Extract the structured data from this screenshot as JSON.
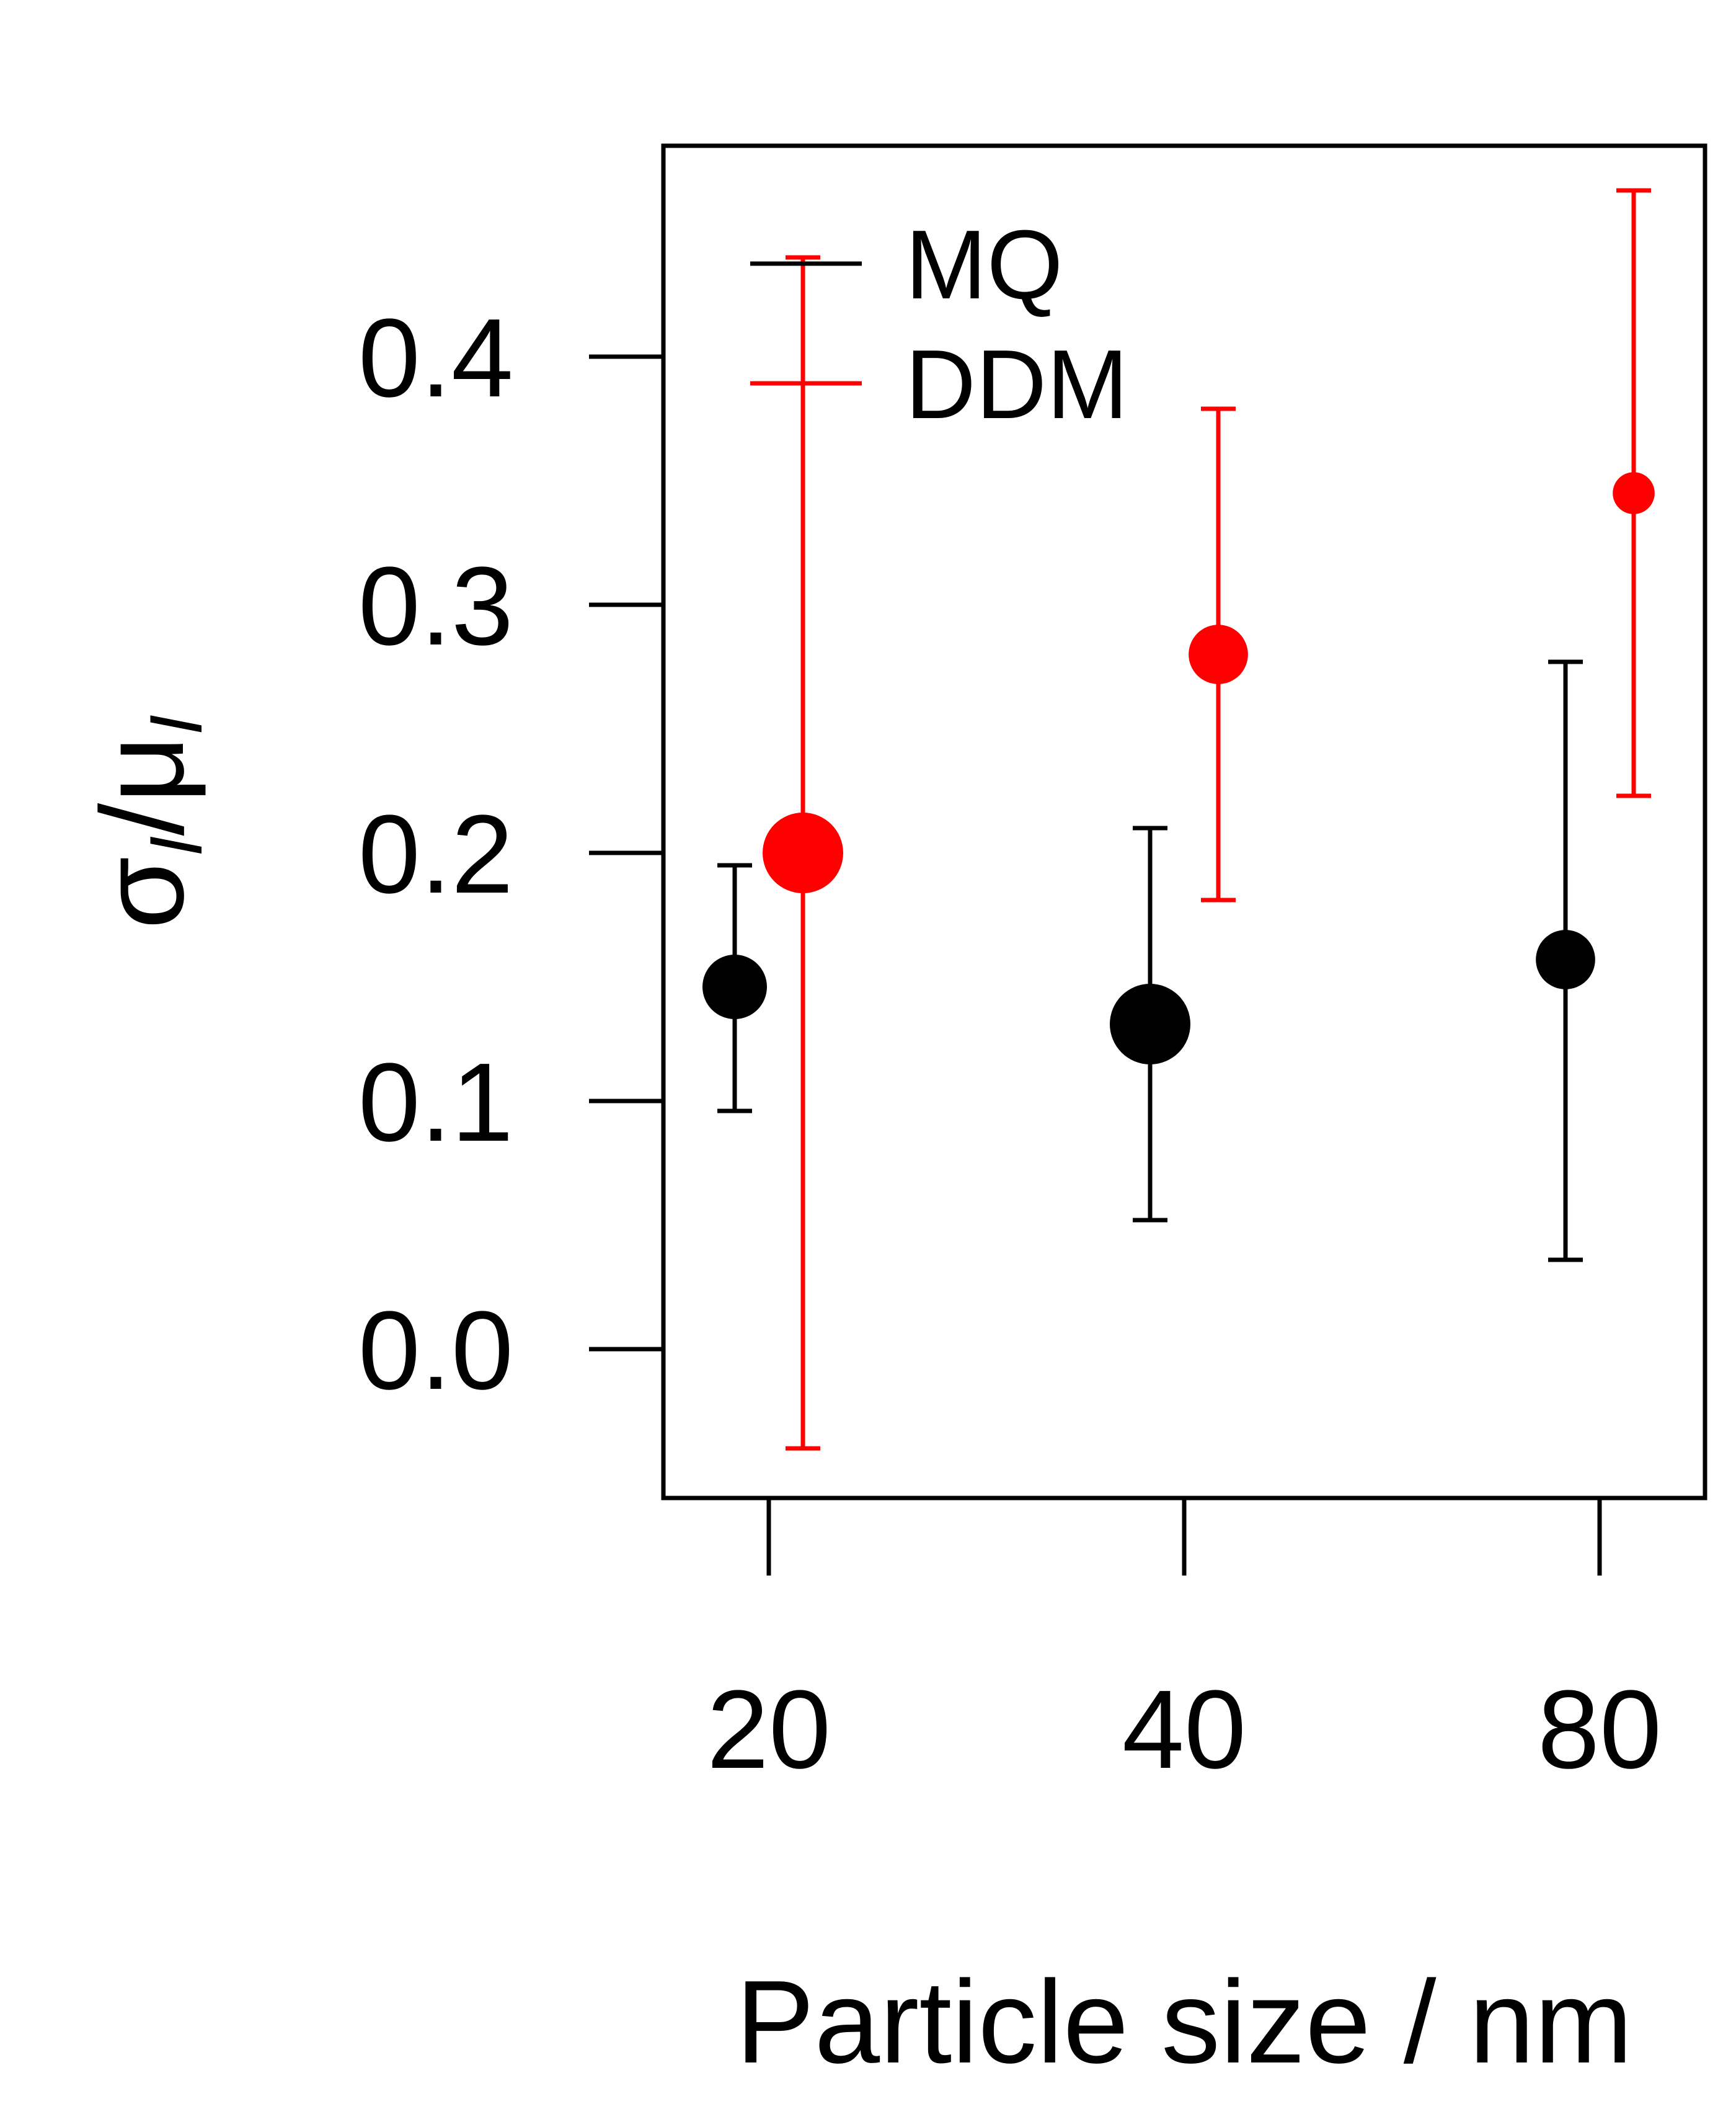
{
  "chart_data": {
    "type": "scatter",
    "categories": [
      "20",
      "40",
      "80"
    ],
    "x_ticks": [
      "20",
      "40",
      "80"
    ],
    "xlabel": "Particle size / nm",
    "ylabel": {
      "main": "σ",
      "sub1": "I",
      "slash": "/",
      "mu": "μ",
      "sub2": "I"
    },
    "y_ticks": [
      "0.0",
      "0.1",
      "0.2",
      "0.3",
      "0.4"
    ],
    "ylim": [
      -0.06,
      0.485
    ],
    "grid": false,
    "legend_position": "top-left",
    "series": [
      {
        "name": "MQ",
        "color": "#000000",
        "values": [
          0.146,
          0.131,
          0.157
        ],
        "lower": [
          0.096,
          0.052,
          0.036
        ],
        "upper": [
          0.195,
          0.21,
          0.277
        ],
        "marker_size": [
          1.0,
          1.25,
          0.92
        ]
      },
      {
        "name": "DDM",
        "color": "#ff0000",
        "values": [
          0.2,
          0.28,
          0.345
        ],
        "lower": [
          -0.04,
          0.181,
          0.223
        ],
        "upper": [
          0.44,
          0.379,
          0.467
        ],
        "marker_size": [
          1.25,
          0.92,
          0.65
        ]
      }
    ]
  }
}
